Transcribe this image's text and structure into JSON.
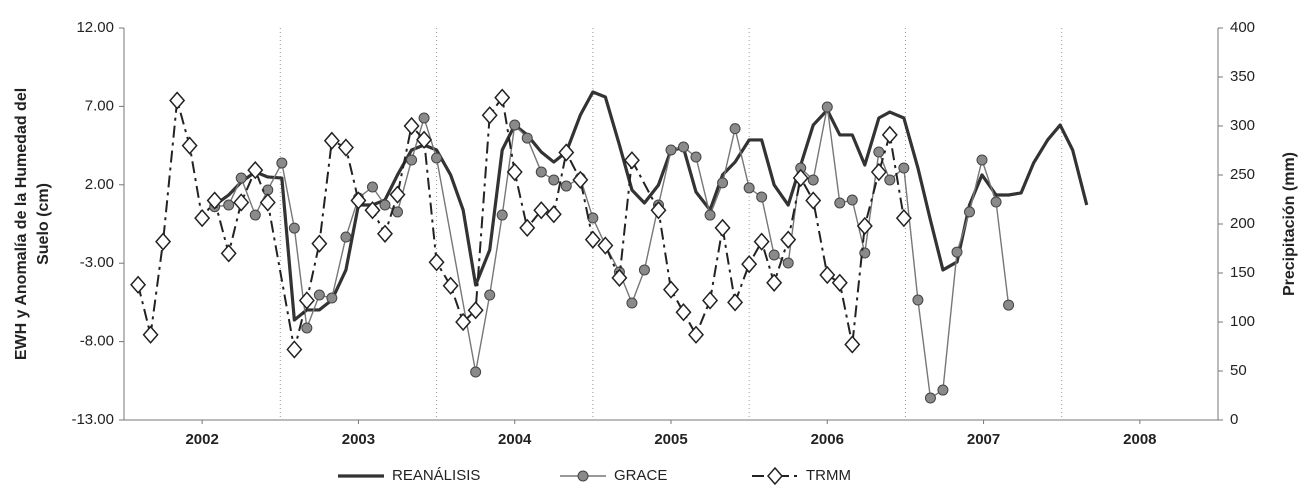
{
  "chart_data": {
    "type": "line",
    "ylabel_lines": [
      "EWH y Anomalía de la Humedad del",
      "Suelo (cm)"
    ],
    "y2label": "Precipitación (mm)",
    "xlim": [
      2002,
      2009
    ],
    "xticks": [
      {
        "value": 2002.5,
        "label": "2002"
      },
      {
        "value": 2003.5,
        "label": "2003"
      },
      {
        "value": 2004.5,
        "label": "2004"
      },
      {
        "value": 2005.5,
        "label": "2005"
      },
      {
        "value": 2006.5,
        "label": "2006"
      },
      {
        "value": 2007.5,
        "label": "2007"
      },
      {
        "value": 2008.5,
        "label": "2008"
      }
    ],
    "xgrid": [
      2003,
      2004,
      2005,
      2006,
      2007,
      2008
    ],
    "ylim": [
      -13,
      12
    ],
    "yticks": [
      {
        "value": 12,
        "label": "12.00"
      },
      {
        "value": 7,
        "label": "7.00"
      },
      {
        "value": 2,
        "label": "2.00"
      },
      {
        "value": -3,
        "label": "-3.00"
      },
      {
        "value": -8,
        "label": "-8.00"
      },
      {
        "value": -13,
        "label": "-13.00"
      }
    ],
    "y2lim": [
      0,
      400
    ],
    "y2ticks": [
      0,
      50,
      100,
      150,
      200,
      250,
      300,
      350,
      400
    ],
    "legend": "bottom",
    "series": [
      {
        "name": "REANÁLISIS",
        "color": "#333333",
        "width": 3.2,
        "dash": "",
        "marker": "none",
        "x": [
          2002.58,
          2002.67,
          2002.75,
          2002.84,
          2002.92,
          2003.01,
          2003.09,
          2003.17,
          2003.25,
          2003.33,
          2003.42,
          2003.5,
          2003.59,
          2003.67,
          2003.75,
          2003.84,
          2003.92,
          2004.0,
          2004.09,
          2004.17,
          2004.25,
          2004.34,
          2004.42,
          2004.5,
          2004.58,
          2004.67,
          2004.75,
          2004.83,
          2004.92,
          2005.0,
          2005.08,
          2005.17,
          2005.25,
          2005.33,
          2005.42,
          2005.5,
          2005.58,
          2005.66,
          2005.75,
          2005.83,
          2005.91,
          2006.0,
          2006.08,
          2006.16,
          2006.25,
          2006.33,
          2006.41,
          2006.5,
          2006.58,
          2006.66,
          2006.74,
          2006.83,
          2006.9,
          2006.99,
          2007.08,
          2007.16,
          2007.24,
          2007.33,
          2007.41,
          2007.49,
          2007.58,
          2007.66,
          2007.74,
          2007.82,
          2007.91,
          2007.99,
          2008.07,
          2008.16
        ],
        "values": [
          0.7,
          1.35,
          2.18,
          2.82,
          2.5,
          2.43,
          -6.62,
          -5.98,
          -5.98,
          -5.35,
          -3.43,
          0.71,
          0.71,
          1.03,
          2.63,
          4.22,
          4.54,
          4.22,
          2.63,
          0.39,
          -4.39,
          -2.16,
          4.22,
          5.81,
          5.18,
          4.09,
          3.45,
          4.09,
          6.45,
          7.92,
          7.6,
          4.54,
          1.67,
          0.84,
          1.99,
          4.22,
          4.35,
          1.54,
          0.39,
          2.63,
          3.45,
          4.86,
          4.86,
          1.99,
          0.71,
          3.26,
          5.81,
          6.77,
          5.18,
          5.18,
          3.26,
          6.26,
          6.64,
          6.26,
          3.07,
          -0.25,
          -3.43,
          -2.92,
          0.71,
          2.63,
          1.35,
          1.35,
          1.48,
          3.39,
          4.86,
          5.81,
          4.22,
          0.71
        ]
      },
      {
        "name": "GRACE",
        "color": "#777777",
        "width": 1.4,
        "dash": "",
        "marker": "circle",
        "x": [
          2002.58,
          2002.67,
          2002.75,
          2002.84,
          2002.92,
          2003.01,
          2003.09,
          2003.17,
          2003.25,
          2003.33,
          2003.42,
          2003.5,
          2003.59,
          2003.67,
          2003.75,
          2003.84,
          2003.92,
          2004.0,
          2004.25,
          2004.34,
          2004.42,
          2004.5,
          2004.58,
          2004.67,
          2004.75,
          2004.83,
          2004.92,
          2005.0,
          2005.08,
          2005.17,
          2005.25,
          2005.33,
          2005.42,
          2005.5,
          2005.58,
          2005.66,
          2005.75,
          2005.83,
          2005.91,
          2006.0,
          2006.08,
          2006.16,
          2006.25,
          2006.33,
          2006.41,
          2006.5,
          2006.58,
          2006.66,
          2006.74,
          2006.83,
          2006.9,
          2006.99,
          2007.08,
          2007.16,
          2007.24,
          2007.33,
          2007.41,
          2007.49,
          2007.58,
          2007.66
        ],
        "values": [
          0.6,
          0.71,
          2.43,
          0.07,
          1.67,
          3.39,
          -0.76,
          -7.13,
          -5.03,
          -5.22,
          -1.33,
          1.16,
          1.86,
          0.71,
          0.27,
          3.58,
          6.26,
          3.71,
          -9.94,
          -5.03,
          0.07,
          5.81,
          4.98,
          2.82,
          2.31,
          1.92,
          2.43,
          -0.12,
          -1.84,
          -3.56,
          -5.54,
          -3.43,
          0.71,
          4.22,
          4.41,
          3.77,
          0.07,
          2.12,
          5.58,
          1.8,
          1.22,
          -2.48,
          -2.99,
          3.07,
          2.31,
          6.96,
          0.84,
          1.03,
          -2.35,
          4.09,
          2.31,
          3.07,
          -5.35,
          -11.6,
          -11.09,
          -2.29,
          0.27,
          3.58,
          0.9,
          -5.67
        ]
      },
      {
        "name": "TRMM",
        "color": "#222222",
        "width": 2,
        "dash": "12 5 3 5",
        "marker": "diamond",
        "axis": "y2",
        "x": [
          2002.09,
          2002.17,
          2002.25,
          2002.34,
          2002.42,
          2002.5,
          2002.58,
          2002.67,
          2002.75,
          2002.84,
          2002.92,
          2003.09,
          2003.17,
          2003.25,
          2003.33,
          2003.42,
          2003.5,
          2003.59,
          2003.67,
          2003.75,
          2003.84,
          2003.92,
          2004.0,
          2004.09,
          2004.17,
          2004.25,
          2004.34,
          2004.42,
          2004.5,
          2004.58,
          2004.67,
          2004.75,
          2004.83,
          2004.92,
          2005.0,
          2005.08,
          2005.17,
          2005.25,
          2005.42,
          2005.5,
          2005.58,
          2005.66,
          2005.75,
          2005.83,
          2005.91,
          2006.0,
          2006.08,
          2006.16,
          2006.25,
          2006.33,
          2006.41,
          2006.5,
          2006.58,
          2006.66,
          2006.74,
          2006.83,
          2006.9,
          2006.99
        ],
        "values": [
          138,
          87,
          182,
          326,
          280,
          206,
          224,
          170,
          222,
          255,
          222,
          72,
          122,
          180,
          285,
          278,
          224,
          214,
          190,
          230,
          300,
          286,
          161,
          137,
          100,
          112,
          311,
          329,
          253,
          196,
          214,
          210,
          273,
          245,
          184,
          178,
          145,
          265,
          214,
          133,
          110,
          87,
          122,
          196,
          120,
          159,
          182,
          140,
          184,
          247,
          224,
          148,
          140,
          77,
          198,
          253,
          291,
          206
        ]
      }
    ]
  }
}
